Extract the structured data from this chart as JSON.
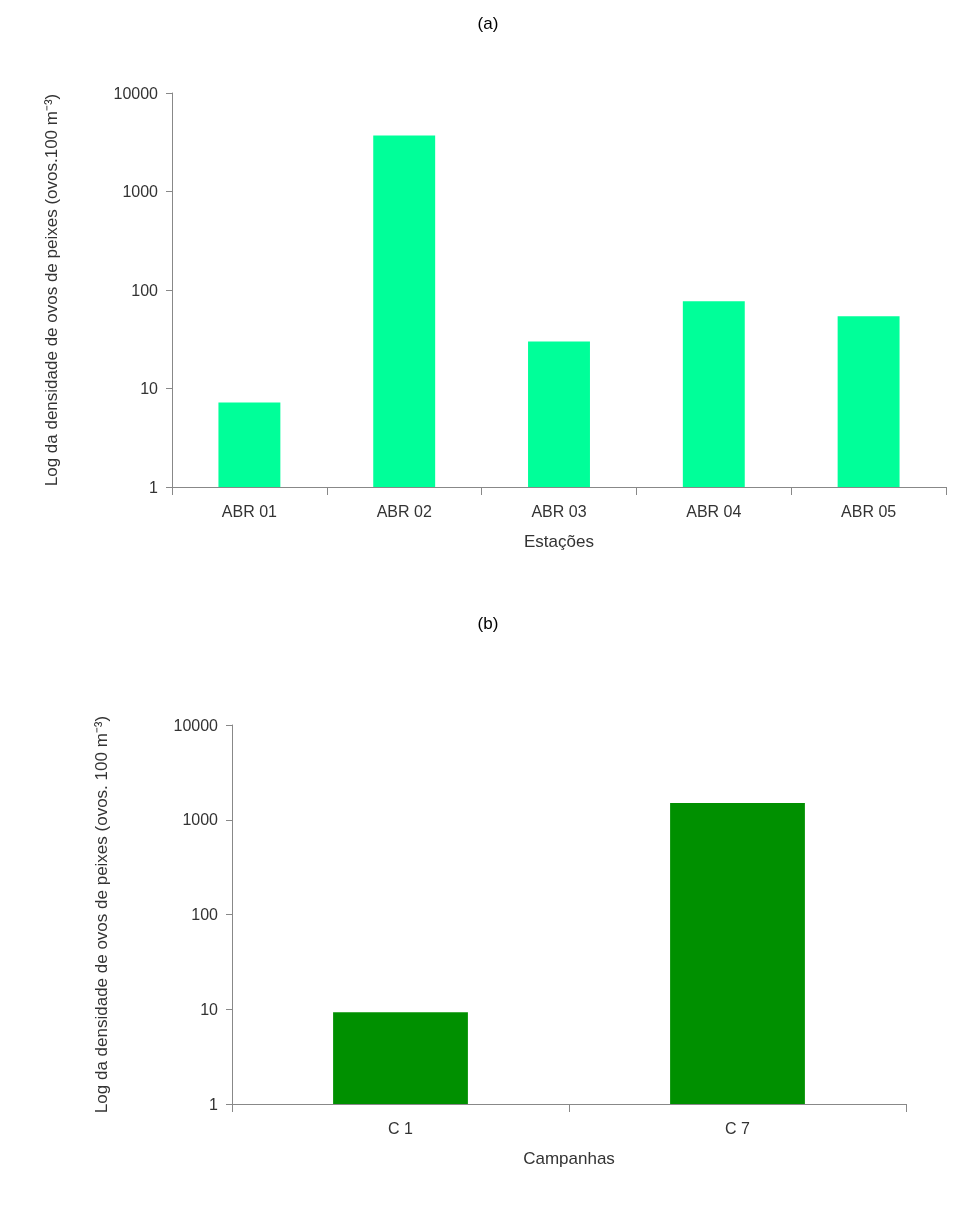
{
  "chart_data": [
    {
      "type": "bar",
      "title": "(a)",
      "xlabel": "Estações",
      "ylabel": "Log da densidade de ovos de peixes (ovos.100 m⁻³)",
      "categories": [
        "ABR 01",
        "ABR 02",
        "ABR 03",
        "ABR 04",
        "ABR 05"
      ],
      "values": [
        7.2,
        3700,
        30,
        77,
        54
      ],
      "color": "#00ff99",
      "log": "y",
      "ylim": [
        1,
        10000
      ],
      "yticks": [
        1,
        10,
        100,
        1000,
        10000
      ],
      "grid": false
    },
    {
      "type": "bar",
      "title": "(b)",
      "xlabel": "Campanhas",
      "ylabel": "Log da densidade de ovos de peixes (ovos. 100 m⁻³)",
      "categories": [
        "C 1",
        "C 7"
      ],
      "values": [
        9.3,
        1500
      ],
      "color": "#009000",
      "log": "y",
      "ylim": [
        1,
        10000
      ],
      "yticks": [
        1,
        10,
        100,
        1000,
        10000
      ],
      "grid": false
    }
  ]
}
